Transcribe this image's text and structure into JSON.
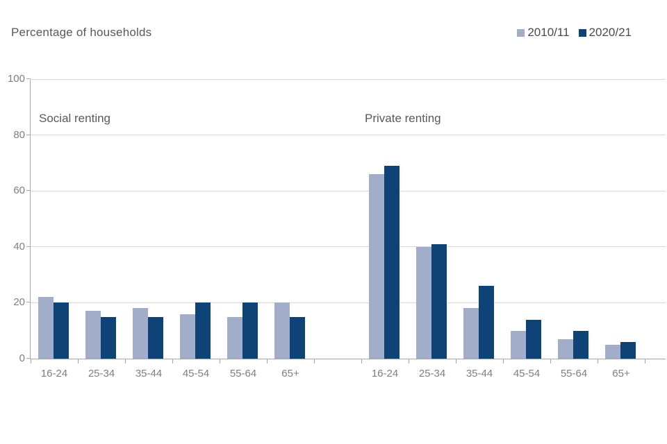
{
  "chart_data": {
    "type": "bar",
    "title": "Percentage of households",
    "xlabel": "",
    "ylabel": "Percentage of households",
    "ylim": [
      0,
      100
    ],
    "yticks": [
      0,
      20,
      40,
      60,
      80,
      100
    ],
    "grid": "horizontal",
    "legend_position": "top-right",
    "series_names": [
      "2010/11",
      "2020/21"
    ],
    "series_colors": [
      "#a2adc9",
      "#0e4377"
    ],
    "categories": [
      "16-24",
      "25-34",
      "35-44",
      "45-54",
      "55-64",
      "65+"
    ],
    "groups": [
      {
        "label": "Social renting",
        "series": [
          {
            "name": "2010/11",
            "values": [
              22,
              17,
              18,
              16,
              15,
              20
            ]
          },
          {
            "name": "2020/21",
            "values": [
              20,
              15,
              15,
              20,
              20,
              15
            ]
          }
        ]
      },
      {
        "label": "Private renting",
        "series": [
          {
            "name": "2010/11",
            "values": [
              66,
              40,
              18,
              10,
              7,
              5
            ]
          },
          {
            "name": "2020/21",
            "values": [
              69,
              41,
              26,
              14,
              10,
              6
            ]
          }
        ]
      }
    ],
    "axis_color": "#a6a6a6",
    "gridline_color": "#d9d9d9",
    "tick_label_color": "#7f7f7f",
    "text_color": "#595959"
  }
}
